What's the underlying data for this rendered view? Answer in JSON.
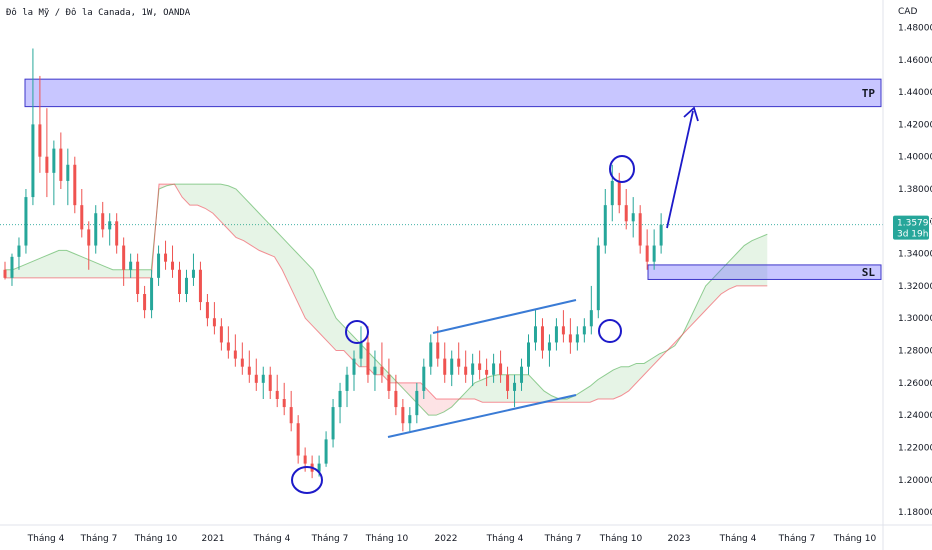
{
  "header": {
    "title": "Đô la Mỹ / Đô la Canada, 1W, OANDA"
  },
  "chart_data": {
    "type": "candlestick",
    "title": "Đô la Mỹ / Đô la Canada, 1W, OANDA",
    "currency_label": "CAD",
    "y_ticks": [
      "1.18000",
      "1.20000",
      "1.22000",
      "1.24000",
      "1.26000",
      "1.28000",
      "1.30000",
      "1.32000",
      "1.34000",
      "1.36000",
      "1.38000",
      "1.40000",
      "1.42000",
      "1.44000",
      "1.46000",
      "1.48000"
    ],
    "ylim": [
      1.172,
      1.497
    ],
    "x_ticks": [
      "Tháng 4",
      "Tháng 7",
      "Tháng 10",
      "2021",
      "Tháng 4",
      "Tháng 7",
      "Tháng 10",
      "2022",
      "Tháng 4",
      "Tháng 7",
      "Tháng 10",
      "2023",
      "Tháng 4",
      "Tháng 7",
      "Tháng 10"
    ],
    "current_price": "1.35792",
    "countdown": "3d 19h",
    "tp_zone": {
      "label": "TP",
      "top": 1.448,
      "bottom": 1.431
    },
    "sl_zone": {
      "label": "SL",
      "top": 1.333,
      "bottom": 1.324
    },
    "price_path": [
      [
        1.33,
        1.335,
        1.324,
        1.325
      ],
      [
        1.325,
        1.34,
        1.32,
        1.338
      ],
      [
        1.338,
        1.35,
        1.33,
        1.345
      ],
      [
        1.345,
        1.38,
        1.34,
        1.375
      ],
      [
        1.375,
        1.467,
        1.37,
        1.42
      ],
      [
        1.42,
        1.45,
        1.39,
        1.4
      ],
      [
        1.4,
        1.43,
        1.375,
        1.39
      ],
      [
        1.39,
        1.41,
        1.37,
        1.405
      ],
      [
        1.405,
        1.415,
        1.38,
        1.385
      ],
      [
        1.385,
        1.405,
        1.37,
        1.395
      ],
      [
        1.395,
        1.4,
        1.365,
        1.37
      ],
      [
        1.37,
        1.38,
        1.35,
        1.355
      ],
      [
        1.355,
        1.36,
        1.33,
        1.345
      ],
      [
        1.345,
        1.37,
        1.34,
        1.365
      ],
      [
        1.365,
        1.372,
        1.35,
        1.355
      ],
      [
        1.355,
        1.365,
        1.345,
        1.36
      ],
      [
        1.36,
        1.365,
        1.34,
        1.345
      ],
      [
        1.345,
        1.35,
        1.32,
        1.33
      ],
      [
        1.33,
        1.34,
        1.325,
        1.335
      ],
      [
        1.335,
        1.34,
        1.31,
        1.315
      ],
      [
        1.315,
        1.32,
        1.3,
        1.305
      ],
      [
        1.305,
        1.33,
        1.3,
        1.325
      ],
      [
        1.325,
        1.345,
        1.32,
        1.34
      ],
      [
        1.34,
        1.348,
        1.33,
        1.335
      ],
      [
        1.335,
        1.345,
        1.325,
        1.33
      ],
      [
        1.33,
        1.335,
        1.31,
        1.315
      ],
      [
        1.315,
        1.33,
        1.31,
        1.325
      ],
      [
        1.325,
        1.34,
        1.32,
        1.33
      ],
      [
        1.33,
        1.335,
        1.305,
        1.31
      ],
      [
        1.31,
        1.315,
        1.295,
        1.3
      ],
      [
        1.3,
        1.31,
        1.29,
        1.295
      ],
      [
        1.295,
        1.3,
        1.28,
        1.285
      ],
      [
        1.285,
        1.295,
        1.275,
        1.28
      ],
      [
        1.28,
        1.29,
        1.27,
        1.275
      ],
      [
        1.275,
        1.285,
        1.265,
        1.27
      ],
      [
        1.27,
        1.28,
        1.26,
        1.265
      ],
      [
        1.265,
        1.275,
        1.255,
        1.26
      ],
      [
        1.26,
        1.27,
        1.25,
        1.265
      ],
      [
        1.265,
        1.27,
        1.25,
        1.255
      ],
      [
        1.255,
        1.265,
        1.245,
        1.25
      ],
      [
        1.25,
        1.26,
        1.24,
        1.245
      ],
      [
        1.245,
        1.255,
        1.23,
        1.235
      ],
      [
        1.235,
        1.24,
        1.21,
        1.215
      ],
      [
        1.215,
        1.22,
        1.205,
        1.21
      ],
      [
        1.21,
        1.215,
        1.201,
        1.205
      ],
      [
        1.205,
        1.215,
        1.202,
        1.21
      ],
      [
        1.21,
        1.23,
        1.208,
        1.225
      ],
      [
        1.225,
        1.25,
        1.22,
        1.245
      ],
      [
        1.245,
        1.26,
        1.235,
        1.255
      ],
      [
        1.255,
        1.27,
        1.245,
        1.265
      ],
      [
        1.265,
        1.28,
        1.255,
        1.275
      ],
      [
        1.275,
        1.295,
        1.27,
        1.285
      ],
      [
        1.285,
        1.295,
        1.26,
        1.265
      ],
      [
        1.265,
        1.28,
        1.255,
        1.27
      ],
      [
        1.27,
        1.285,
        1.26,
        1.265
      ],
      [
        1.265,
        1.275,
        1.25,
        1.255
      ],
      [
        1.255,
        1.265,
        1.24,
        1.245
      ],
      [
        1.245,
        1.25,
        1.23,
        1.235
      ],
      [
        1.235,
        1.245,
        1.23,
        1.24
      ],
      [
        1.24,
        1.26,
        1.235,
        1.255
      ],
      [
        1.255,
        1.275,
        1.25,
        1.27
      ],
      [
        1.27,
        1.29,
        1.265,
        1.285
      ],
      [
        1.285,
        1.295,
        1.27,
        1.275
      ],
      [
        1.275,
        1.285,
        1.26,
        1.265
      ],
      [
        1.265,
        1.28,
        1.258,
        1.275
      ],
      [
        1.275,
        1.285,
        1.265,
        1.27
      ],
      [
        1.27,
        1.28,
        1.26,
        1.265
      ],
      [
        1.265,
        1.278,
        1.258,
        1.272
      ],
      [
        1.272,
        1.28,
        1.262,
        1.268
      ],
      [
        1.268,
        1.275,
        1.258,
        1.265
      ],
      [
        1.265,
        1.278,
        1.26,
        1.272
      ],
      [
        1.272,
        1.28,
        1.26,
        1.265
      ],
      [
        1.265,
        1.27,
        1.25,
        1.255
      ],
      [
        1.255,
        1.265,
        1.245,
        1.26
      ],
      [
        1.26,
        1.275,
        1.255,
        1.27
      ],
      [
        1.27,
        1.29,
        1.265,
        1.285
      ],
      [
        1.285,
        1.305,
        1.28,
        1.295
      ],
      [
        1.295,
        1.3,
        1.275,
        1.28
      ],
      [
        1.28,
        1.29,
        1.27,
        1.285
      ],
      [
        1.285,
        1.3,
        1.28,
        1.295
      ],
      [
        1.295,
        1.305,
        1.285,
        1.29
      ],
      [
        1.29,
        1.3,
        1.278,
        1.285
      ],
      [
        1.285,
        1.295,
        1.28,
        1.29
      ],
      [
        1.29,
        1.3,
        1.285,
        1.295
      ],
      [
        1.295,
        1.32,
        1.29,
        1.305
      ],
      [
        1.305,
        1.35,
        1.3,
        1.345
      ],
      [
        1.345,
        1.38,
        1.34,
        1.37
      ],
      [
        1.37,
        1.395,
        1.36,
        1.385
      ],
      [
        1.385,
        1.39,
        1.365,
        1.37
      ],
      [
        1.37,
        1.38,
        1.355,
        1.36
      ],
      [
        1.36,
        1.375,
        1.35,
        1.365
      ],
      [
        1.365,
        1.37,
        1.34,
        1.345
      ],
      [
        1.345,
        1.355,
        1.33,
        1.335
      ],
      [
        1.335,
        1.355,
        1.33,
        1.345
      ],
      [
        1.345,
        1.365,
        1.34,
        1.3579
      ]
    ],
    "cloud_span_a": [
      1.33,
      1.33,
      1.332,
      1.334,
      1.336,
      1.338,
      1.34,
      1.342,
      1.342,
      1.34,
      1.338,
      1.336,
      1.334,
      1.332,
      1.33,
      1.33,
      1.33,
      1.33,
      1.33,
      1.33,
      1.38,
      1.382,
      1.383,
      1.383,
      1.383,
      1.383,
      1.383,
      1.383,
      1.383,
      1.382,
      1.38,
      1.375,
      1.37,
      1.365,
      1.36,
      1.355,
      1.35,
      1.345,
      1.34,
      1.335,
      1.33,
      1.32,
      1.31,
      1.3,
      1.295,
      1.29,
      1.285,
      1.28,
      1.275,
      1.27,
      1.265,
      1.26,
      1.255,
      1.25,
      1.245,
      1.24,
      1.24,
      1.242,
      1.245,
      1.25,
      1.255,
      1.26,
      1.262,
      1.264,
      1.265,
      1.265,
      1.265,
      1.265,
      1.265,
      1.26,
      1.255,
      1.252,
      1.25,
      1.25,
      1.252,
      1.255,
      1.258,
      1.262,
      1.265,
      1.268,
      1.27,
      1.27,
      1.272,
      1.272,
      1.275,
      1.278,
      1.28,
      1.283,
      1.29,
      1.3,
      1.31,
      1.32,
      1.325,
      1.33,
      1.335,
      1.34,
      1.345,
      1.348,
      1.35,
      1.352
    ],
    "cloud_span_b": [
      1.325,
      1.325,
      1.325,
      1.325,
      1.325,
      1.325,
      1.325,
      1.325,
      1.325,
      1.325,
      1.325,
      1.325,
      1.325,
      1.325,
      1.325,
      1.325,
      1.325,
      1.325,
      1.325,
      1.325,
      1.383,
      1.383,
      1.383,
      1.375,
      1.37,
      1.37,
      1.368,
      1.365,
      1.36,
      1.355,
      1.35,
      1.348,
      1.345,
      1.342,
      1.34,
      1.338,
      1.33,
      1.32,
      1.31,
      1.3,
      1.295,
      1.29,
      1.285,
      1.28,
      1.28,
      1.275,
      1.27,
      1.27,
      1.265,
      1.265,
      1.26,
      1.26,
      1.26,
      1.26,
      1.26,
      1.255,
      1.25,
      1.25,
      1.25,
      1.25,
      1.25,
      1.25,
      1.248,
      1.248,
      1.248,
      1.248,
      1.248,
      1.248,
      1.248,
      1.248,
      1.248,
      1.248,
      1.248,
      1.248,
      1.248,
      1.248,
      1.248,
      1.25,
      1.25,
      1.25,
      1.252,
      1.255,
      1.26,
      1.265,
      1.27,
      1.275,
      1.28,
      1.285,
      1.29,
      1.295,
      1.3,
      1.305,
      1.31,
      1.315,
      1.318,
      1.32,
      1.32,
      1.32,
      1.32,
      1.32
    ]
  }
}
